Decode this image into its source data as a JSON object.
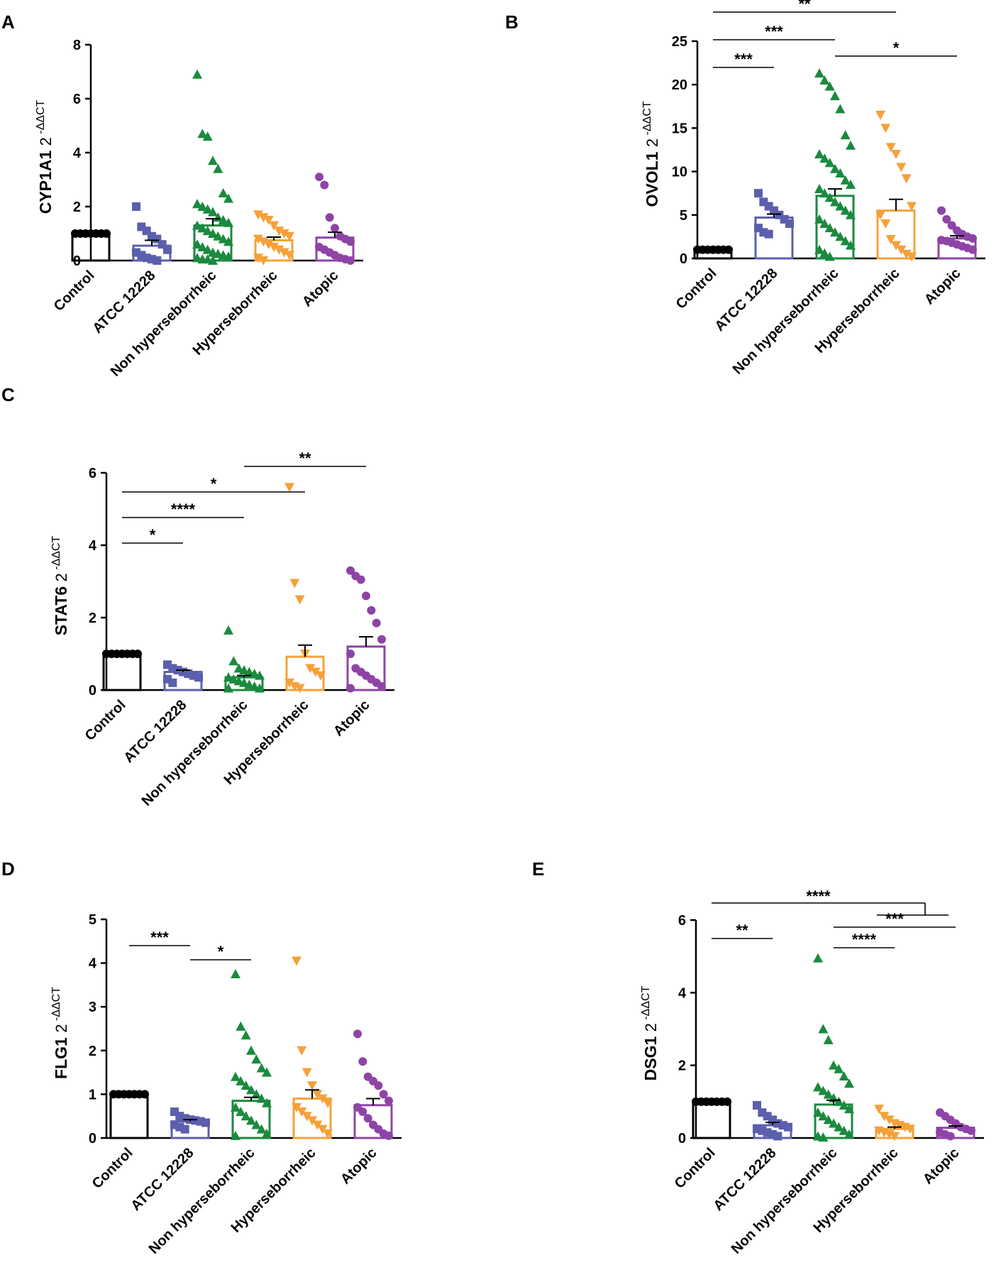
{
  "colors": {
    "Control": "#000000",
    "ATCC 12228": "#5b5fad",
    "Non hyperseborrheic": "#1a8a3e",
    "Hyperseborrheic": "#f5a13a",
    "Atopic": "#8e44a6"
  },
  "markers": {
    "Control": "circle",
    "ATCC 12228": "square",
    "Non hyperseborrheic": "triangle-up",
    "Hyperseborrheic": "triangle-down",
    "Atopic": "circle"
  },
  "chart_data": [
    {
      "panel": "A",
      "type": "bar",
      "ylabel": "CYP1A1",
      "ylabel_unit": "2 -ΔΔCT",
      "ylim": [
        0,
        8
      ],
      "yticks": [
        0,
        2,
        4,
        6,
        8
      ],
      "categories": [
        "Control",
        "ATCC 12228",
        "Non hyperseborrheic",
        "Hyperseborrheic",
        "Atopic"
      ],
      "values": [
        1.0,
        0.55,
        1.3,
        0.75,
        0.85
      ],
      "errors": [
        0,
        0.2,
        0.25,
        0.12,
        0.2
      ],
      "points": [
        [
          1,
          1,
          1,
          1,
          1,
          1,
          1
        ],
        [
          2.0,
          1.25,
          1.1,
          0.9,
          0.8,
          0.6,
          0.4,
          0.3,
          0.2,
          0.1,
          0.05,
          0.0
        ],
        [
          6.9,
          4.7,
          4.6,
          3.7,
          3.4,
          2.5,
          2.3,
          2.1,
          2.0,
          1.9,
          1.8,
          1.6,
          1.5,
          1.4,
          1.3,
          1.2,
          1.1,
          1.0,
          0.9,
          0.8,
          0.7,
          0.6,
          0.5,
          0.4,
          0.3,
          0.25,
          0.2,
          0.15,
          0.1,
          0.05,
          0.05,
          0.0
        ],
        [
          1.7,
          1.6,
          1.5,
          1.3,
          1.1,
          1.0,
          0.9,
          0.8,
          0.7,
          0.6,
          0.5,
          0.4,
          0.3,
          0.2,
          0.1,
          0.0
        ],
        [
          3.1,
          2.8,
          1.6,
          1.2,
          0.9,
          0.8,
          0.7,
          0.5,
          0.4,
          0.3,
          0.2,
          0.1,
          0.05,
          0.0
        ]
      ],
      "significance": []
    },
    {
      "panel": "B",
      "type": "bar",
      "ylabel": "OVOL1",
      "ylabel_unit": "2 -ΔΔCT",
      "ylim": [
        0,
        25
      ],
      "yticks": [
        0,
        5,
        10,
        15,
        20,
        25
      ],
      "categories": [
        "Control",
        "ATCC 12228",
        "Non hyperseborrheic",
        "Hyperseborrheic",
        "Atopic"
      ],
      "values": [
        1.0,
        4.7,
        7.2,
        5.5,
        2.3
      ],
      "errors": [
        0,
        0.4,
        0.8,
        1.3,
        0.3
      ],
      "points": [
        [
          1,
          1,
          1,
          1,
          1,
          1,
          1
        ],
        [
          7.5,
          6.5,
          6.0,
          5.5,
          5.0,
          4.5,
          4.0,
          3.5,
          3.0,
          2.8
        ],
        [
          21.3,
          20.5,
          19.8,
          18.7,
          17.2,
          14.2,
          13.0,
          12.0,
          11.5,
          11.0,
          10.3,
          9.8,
          9.0,
          8.5,
          8.0,
          7.5,
          7.0,
          6.5,
          6.0,
          5.5,
          5.0,
          4.5,
          4.0,
          3.5,
          3.0,
          2.5,
          2.0,
          1.5,
          1.0,
          0.6,
          0.2
        ],
        [
          16.5,
          15.0,
          12.8,
          12.0,
          10.5,
          9.2,
          6.0,
          5.0,
          4.0,
          2.2,
          1.5,
          1.0,
          0.5,
          0.2
        ],
        [
          5.5,
          4.5,
          3.8,
          3.2,
          2.8,
          2.5,
          2.3,
          2.1,
          2.0,
          1.8,
          1.6,
          1.4,
          1.2,
          1.0
        ]
      ],
      "significance": [
        {
          "from": 0,
          "to": 1,
          "label": "***",
          "level": 0
        },
        {
          "from": 0,
          "to": 2,
          "label": "***",
          "level": 1
        },
        {
          "from": 0,
          "to": 3,
          "label": "**",
          "level": 2
        },
        {
          "from": 2,
          "to": 4,
          "label": "*",
          "level": 0.5
        }
      ]
    },
    {
      "panel": "C",
      "type": "bar",
      "ylabel": "STAT6",
      "ylabel_unit": "2 -ΔΔCT",
      "ylim": [
        0,
        6
      ],
      "yticks": [
        0,
        2,
        4,
        6
      ],
      "categories": [
        "Control",
        "ATCC 12228",
        "Non hyperseborrheic",
        "Hyperseborrheic",
        "Atopic"
      ],
      "values": [
        1.0,
        0.5,
        0.35,
        0.92,
        1.2
      ],
      "errors": [
        0,
        0.05,
        0.05,
        0.32,
        0.27
      ],
      "points": [
        [
          1,
          1,
          1,
          1,
          1,
          1,
          1
        ],
        [
          0.7,
          0.6,
          0.55,
          0.5,
          0.45,
          0.4,
          0.35,
          0.3,
          0.2
        ],
        [
          1.65,
          0.8,
          0.6,
          0.55,
          0.5,
          0.45,
          0.4,
          0.35,
          0.3,
          0.25,
          0.2,
          0.15,
          0.1,
          0.05,
          0.05
        ],
        [
          5.6,
          2.95,
          2.5,
          1.0,
          0.6,
          0.5,
          0.4,
          0.2,
          0.1,
          0.05
        ],
        [
          3.3,
          3.15,
          3.05,
          2.6,
          2.2,
          1.85,
          1.4,
          1.0,
          0.6,
          0.5,
          0.4,
          0.3,
          0.2,
          0.1,
          0.05
        ]
      ],
      "significance": [
        {
          "from": 0,
          "to": 1,
          "label": "*",
          "level": 0
        },
        {
          "from": 0,
          "to": 2,
          "label": "****",
          "level": 1
        },
        {
          "from": 0,
          "to": 3,
          "label": "*",
          "level": 2
        },
        {
          "from": 2,
          "to": 4,
          "label": "**",
          "level": 3
        }
      ]
    },
    {
      "panel": "D",
      "type": "bar",
      "ylabel": "FLG1",
      "ylabel_unit": "2 -ΔΔCT",
      "ylim": [
        0,
        5
      ],
      "yticks": [
        0,
        1,
        2,
        3,
        4,
        5
      ],
      "categories": [
        "Control",
        "ATCC 12228",
        "Non hyperseborrheic",
        "Hyperseborrheic",
        "Atopic"
      ],
      "values": [
        1.0,
        0.38,
        0.85,
        0.9,
        0.75
      ],
      "errors": [
        0,
        0.04,
        0.08,
        0.2,
        0.15
      ],
      "points": [
        [
          1,
          1,
          1,
          1,
          1,
          1,
          1
        ],
        [
          0.6,
          0.5,
          0.45,
          0.42,
          0.4,
          0.38,
          0.35,
          0.3,
          0.25,
          0.2
        ],
        [
          3.75,
          2.55,
          2.35,
          2.0,
          1.8,
          1.6,
          1.5,
          1.4,
          1.3,
          1.2,
          1.1,
          1.0,
          0.9,
          0.8,
          0.7,
          0.6,
          0.5,
          0.4,
          0.3,
          0.2,
          0.1,
          0.05
        ],
        [
          4.05,
          2.0,
          1.5,
          1.2,
          1.0,
          0.9,
          0.8,
          0.7,
          0.6,
          0.5,
          0.4,
          0.3,
          0.2,
          0.1
        ],
        [
          2.38,
          1.75,
          1.4,
          1.3,
          1.2,
          1.0,
          0.85,
          0.7,
          0.6,
          0.45,
          0.3,
          0.2,
          0.1,
          0.05
        ]
      ],
      "significance": [
        {
          "from": 0,
          "to": 1,
          "label": "***",
          "level": 1
        },
        {
          "from": 1,
          "to": 2,
          "label": "*",
          "level": 0
        }
      ]
    },
    {
      "panel": "E",
      "type": "bar",
      "ylabel": "DSG1",
      "ylabel_unit": "2 -ΔΔCT",
      "ylim": [
        0,
        6
      ],
      "yticks": [
        0,
        2,
        4,
        6
      ],
      "categories": [
        "Control",
        "ATCC 12228",
        "Non hyperseborrheic",
        "Hyperseborrheic",
        "Atopic"
      ],
      "values": [
        1.0,
        0.35,
        0.92,
        0.25,
        0.28
      ],
      "errors": [
        0,
        0.08,
        0.12,
        0.05,
        0.05
      ],
      "points": [
        [
          1,
          1,
          1,
          1,
          1,
          1,
          1
        ],
        [
          0.9,
          0.7,
          0.6,
          0.5,
          0.4,
          0.35,
          0.3,
          0.25,
          0.2,
          0.15,
          0.1,
          0.05
        ],
        [
          4.95,
          3.0,
          2.7,
          2.0,
          1.9,
          1.7,
          1.5,
          1.4,
          1.3,
          1.2,
          1.1,
          1.0,
          0.9,
          0.8,
          0.7,
          0.6,
          0.5,
          0.4,
          0.3,
          0.2,
          0.1,
          0.05,
          0.02
        ],
        [
          0.8,
          0.6,
          0.5,
          0.4,
          0.35,
          0.3,
          0.25,
          0.2,
          0.15,
          0.1,
          0.05
        ],
        [
          0.7,
          0.6,
          0.5,
          0.4,
          0.3,
          0.25,
          0.2,
          0.15,
          0.1,
          0.05
        ]
      ],
      "significance": [
        {
          "from": 0,
          "to": 1,
          "label": "**",
          "level": 0
        },
        {
          "from": 2,
          "to": 3,
          "label": "****",
          "level": 0
        },
        {
          "from": 2,
          "to": 4,
          "label": "***",
          "level": 1
        },
        {
          "from": 0,
          "to": "3-4",
          "label": "****",
          "level": 3
        }
      ]
    }
  ]
}
